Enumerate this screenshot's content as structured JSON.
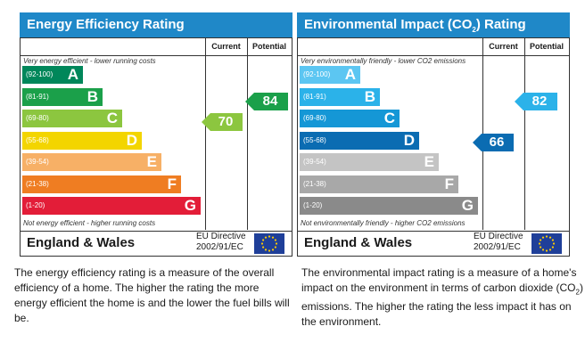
{
  "energy": {
    "title": "Energy Efficiency Rating",
    "col_current": "Current",
    "col_potential": "Potential",
    "top_note": "Very energy efficient - lower running costs",
    "bottom_note": "Not energy efficient - higher running costs",
    "bands": [
      {
        "range": "(92-100)",
        "letter": "A",
        "color": "#00875a"
      },
      {
        "range": "(81-91)",
        "letter": "B",
        "color": "#1ba04a"
      },
      {
        "range": "(69-80)",
        "letter": "C",
        "color": "#8cc63f"
      },
      {
        "range": "(55-68)",
        "letter": "D",
        "color": "#f3d500"
      },
      {
        "range": "(39-54)",
        "letter": "E",
        "color": "#f7b066"
      },
      {
        "range": "(21-38)",
        "letter": "F",
        "color": "#ef7d22"
      },
      {
        "range": "(1-20)",
        "letter": "G",
        "color": "#e31d38"
      }
    ],
    "current_value": "70",
    "current_color": "#8cc63f",
    "potential_value": "84",
    "potential_color": "#1ba04a",
    "region": "England & Wales",
    "directive_line1": "EU Directive",
    "directive_line2": "2002/91/EC",
    "description": "The energy efficiency rating is a measure of the overall efficiency of a home. The higher the rating the more energy efficient the home is and the lower the fuel bills will be."
  },
  "environmental": {
    "title_pre": "Environmental Impact (CO",
    "title_sub": "2",
    "title_post": ") Rating",
    "col_current": "Current",
    "col_potential": "Potential",
    "top_note": "Very environmentally friendly - lower CO2 emissions",
    "bottom_note": "Not environmentally friendly - higher CO2 emissions",
    "bands": [
      {
        "range": "(92-100)",
        "letter": "A",
        "color": "#5cc6f2"
      },
      {
        "range": "(81-91)",
        "letter": "B",
        "color": "#2bb2e9"
      },
      {
        "range": "(69-80)",
        "letter": "C",
        "color": "#1597d6"
      },
      {
        "range": "(55-68)",
        "letter": "D",
        "color": "#0b6cb2"
      },
      {
        "range": "(39-54)",
        "letter": "E",
        "color": "#c4c4c4"
      },
      {
        "range": "(21-38)",
        "letter": "F",
        "color": "#a8a8a8"
      },
      {
        "range": "(1-20)",
        "letter": "G",
        "color": "#8a8a8a"
      }
    ],
    "current_value": "66",
    "current_color": "#0b6cb2",
    "potential_value": "82",
    "potential_color": "#2bb2e9",
    "region": "England & Wales",
    "directive_line1": "EU Directive",
    "directive_line2": "2002/91/EC",
    "description_pre": "The environmental impact rating is a measure of a home's impact on the environment in terms of carbon dioxide (CO",
    "description_sub": "2",
    "description_post": ") emissions. The higher the rating the less impact it has on the environment."
  }
}
